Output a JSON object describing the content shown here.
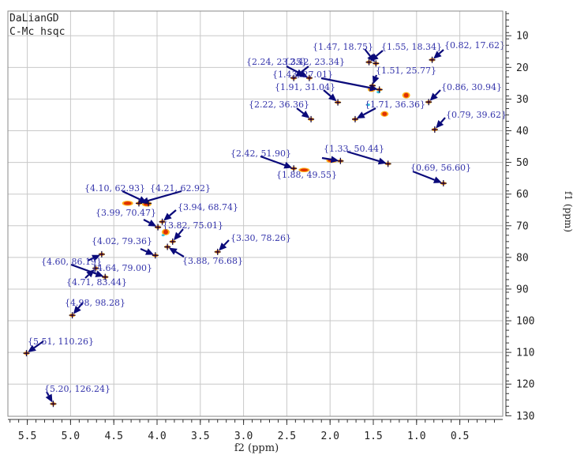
{
  "chart_data": {
    "type": "scatter",
    "title_lines": [
      "DaLianGD",
      "C-Mc hsqc"
    ],
    "xlabel": "f2 (ppm)",
    "ylabel": "f1 (ppm)",
    "xlim": [
      5.85,
      -0.1
    ],
    "ylim": [
      130,
      3
    ],
    "x_ticks": [
      5.5,
      5.0,
      4.5,
      4.0,
      3.5,
      3.0,
      2.5,
      2.0,
      1.5,
      1.0,
      0.5
    ],
    "x_tick_labels": [
      "5.5",
      "5.0",
      "4.5",
      "4.0",
      "3.5",
      "3.0",
      "2.5",
      "2.0",
      "1.5",
      "1.0",
      "0.5"
    ],
    "y_ticks": [
      10,
      20,
      30,
      40,
      50,
      60,
      70,
      80,
      90,
      100,
      110,
      120,
      130
    ],
    "y_tick_labels": [
      "10",
      "20",
      "30",
      "40",
      "50",
      "60",
      "70",
      "80",
      "90",
      "100",
      "110",
      "120",
      "130"
    ],
    "grid": true,
    "colors": {
      "label": "#3333aa",
      "arrow": "#0a0a7a",
      "peak": "#dd2200",
      "peak_alt": "#ffaa00",
      "peak_cool": "#22bbdd",
      "grid": "#c8c8c8"
    },
    "peaks": [
      {
        "x": 0.82,
        "y": 17.62,
        "label": "{0.82, 17.62}"
      },
      {
        "x": 1.55,
        "y": 18.34,
        "label": "{1.55, 18.34}"
      },
      {
        "x": 1.47,
        "y": 18.75,
        "label": "{1.47, 18.75}"
      },
      {
        "x": 2.42,
        "y": 23.34,
        "label": "{2.42, 23.34}"
      },
      {
        "x": 2.24,
        "y": 23.35,
        "label": "{2.24, 23.35}"
      },
      {
        "x": 1.51,
        "y": 25.77,
        "label": "{1.51, 25.77}"
      },
      {
        "x": 1.43,
        "y": 27.01,
        "label": "{1.43, 27.01}"
      },
      {
        "x": 0.86,
        "y": 30.94,
        "label": "{0.86, 30.94}"
      },
      {
        "x": 1.91,
        "y": 31.04,
        "label": "{1.91, 31.04}"
      },
      {
        "x": 2.22,
        "y": 36.36,
        "label": "{2.22, 36.36}"
      },
      {
        "x": 1.71,
        "y": 36.36,
        "label": "{1.71, 36.36}"
      },
      {
        "x": 0.79,
        "y": 39.62,
        "label": "{0.79, 39.62}"
      },
      {
        "x": 1.33,
        "y": 50.44,
        "label": "{1.33, 50.44}"
      },
      {
        "x": 2.42,
        "y": 51.9,
        "label": "{2.42, 51.90}"
      },
      {
        "x": 1.88,
        "y": 49.55,
        "label": "{1.88, 49.55}"
      },
      {
        "x": 0.69,
        "y": 56.6,
        "label": "{0.69, 56.60}"
      },
      {
        "x": 4.1,
        "y": 62.93,
        "label": "{4.10, 62.93}"
      },
      {
        "x": 4.21,
        "y": 62.92,
        "label": "{4.21, 62.92}"
      },
      {
        "x": 3.99,
        "y": 70.47,
        "label": "{3.99, 70.47}"
      },
      {
        "x": 3.94,
        "y": 68.74,
        "label": "{3.94, 68.74}"
      },
      {
        "x": 3.82,
        "y": 75.01,
        "label": "{3.82, 75.01}"
      },
      {
        "x": 3.3,
        "y": 78.26,
        "label": "{3.30, 78.26}"
      },
      {
        "x": 4.02,
        "y": 79.36,
        "label": "{4.02, 79.36}"
      },
      {
        "x": 3.88,
        "y": 76.68,
        "label": "{3.88, 76.68}"
      },
      {
        "x": 4.64,
        "y": 79.0,
        "label": "{4.64, 79.00}"
      },
      {
        "x": 4.6,
        "y": 86.19,
        "label": "{4.60, 86.19}"
      },
      {
        "x": 4.71,
        "y": 83.44,
        "label": "{4.71, 83.44}"
      },
      {
        "x": 4.98,
        "y": 98.28,
        "label": "{4.98, 98.28}"
      },
      {
        "x": 5.51,
        "y": 110.26,
        "label": "{5.51, 110.26}"
      },
      {
        "x": 5.2,
        "y": 126.24,
        "label": "{5.20, 126.24}"
      }
    ]
  }
}
